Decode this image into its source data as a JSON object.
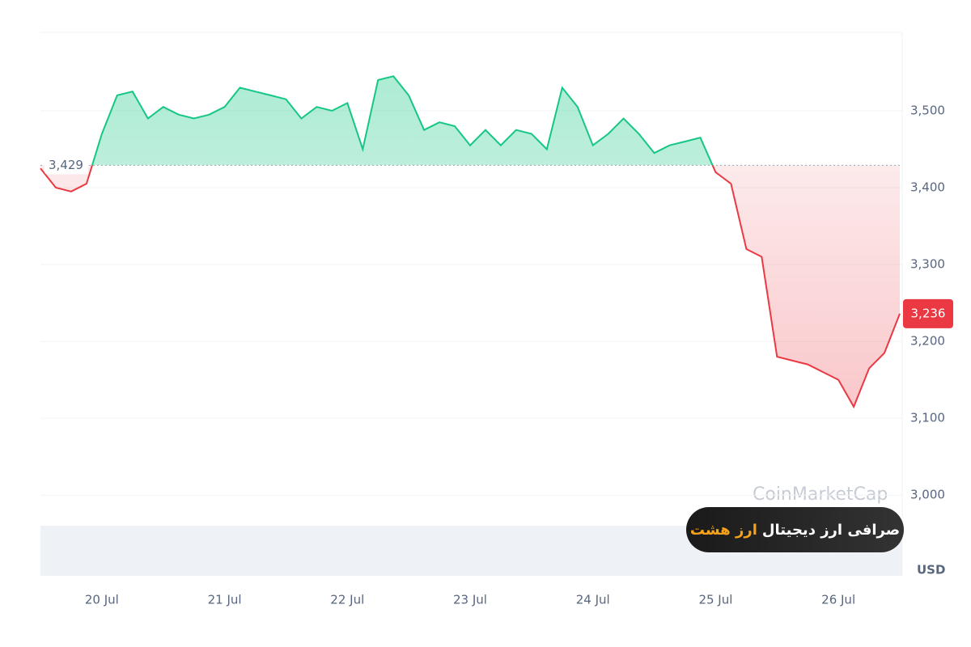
{
  "chart_data": {
    "type": "line",
    "x": [
      0,
      1,
      2,
      3,
      4,
      5,
      6,
      7,
      8,
      9,
      10,
      11,
      12,
      13,
      14,
      15,
      16,
      17,
      18,
      19,
      20,
      21,
      22,
      23,
      24,
      25,
      26,
      27,
      28,
      29,
      30,
      31,
      32,
      33,
      34,
      35,
      36,
      37,
      38,
      39,
      40,
      41,
      42,
      43,
      44,
      45,
      46,
      47,
      48,
      49,
      50,
      51,
      52,
      53,
      54,
      55,
      56
    ],
    "values": [
      3425,
      3400,
      3395,
      3405,
      3470,
      3520,
      3525,
      3490,
      3505,
      3495,
      3490,
      3495,
      3505,
      3530,
      3525,
      3520,
      3515,
      3490,
      3505,
      3500,
      3510,
      3450,
      3540,
      3545,
      3520,
      3475,
      3485,
      3480,
      3455,
      3475,
      3455,
      3475,
      3470,
      3450,
      3530,
      3505,
      3455,
      3470,
      3490,
      3470,
      3445,
      3455,
      3460,
      3465,
      3420,
      3405,
      3320,
      3310,
      3180,
      3175,
      3170,
      3160,
      3150,
      3115,
      3165,
      3185,
      3236
    ],
    "xlim": [
      0,
      56
    ],
    "xticks": [
      {
        "value": 4,
        "label": "20 Jul"
      },
      {
        "value": 12,
        "label": "21 Jul"
      },
      {
        "value": 20,
        "label": "22 Jul"
      },
      {
        "value": 28,
        "label": "23 Jul"
      },
      {
        "value": 36,
        "label": "24 Jul"
      },
      {
        "value": 44,
        "label": "25 Jul"
      },
      {
        "value": 52,
        "label": "26 Jul"
      }
    ],
    "ylim": [
      2895,
      3602
    ],
    "yticks": [
      {
        "value": 3000,
        "label": "3,000"
      },
      {
        "value": 3100,
        "label": "3,100"
      },
      {
        "value": 3200,
        "label": "3,200"
      },
      {
        "value": 3300,
        "label": "3,300"
      },
      {
        "value": 3400,
        "label": "3,400"
      },
      {
        "value": 3500,
        "label": "3,500"
      }
    ],
    "baseline": {
      "value": 3429,
      "label": "3,429"
    },
    "last_label": "3,236",
    "unit": "USD",
    "watermark": "CoinMarketCap",
    "color_up": "#16c784",
    "color_down": "#ea3943",
    "grid": true
  },
  "badge": {
    "text": "صرافی ارز دیجیتال",
    "brand": "ارز هشت"
  }
}
